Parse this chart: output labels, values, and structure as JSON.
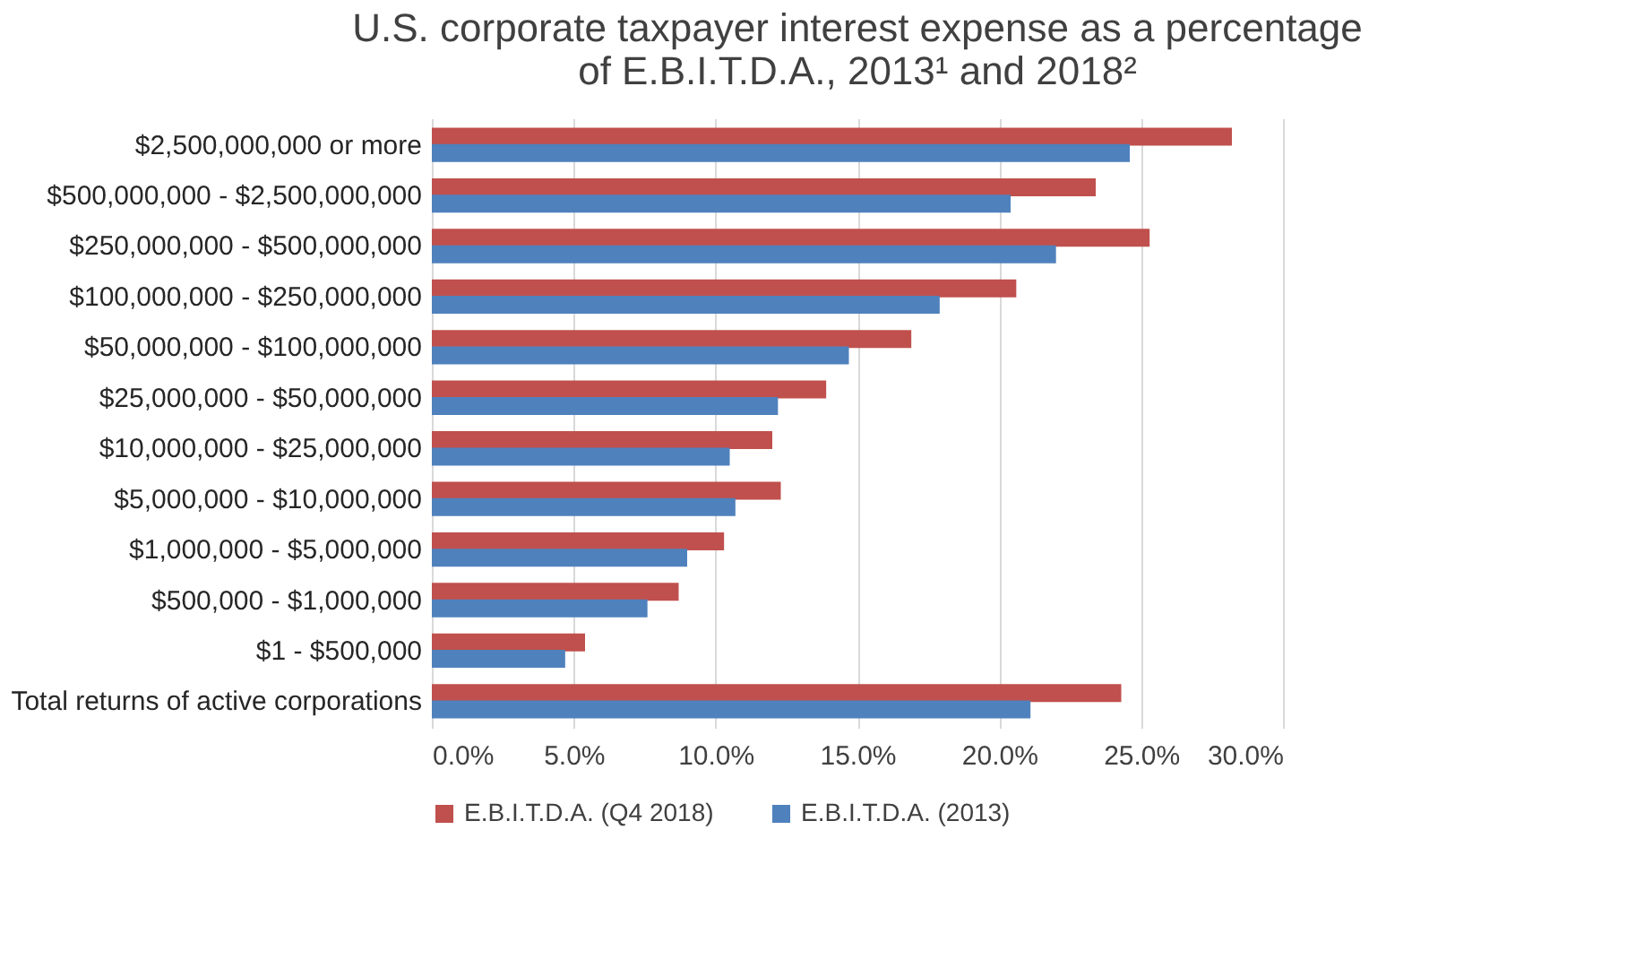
{
  "chart_data": {
    "type": "bar",
    "orientation": "horizontal",
    "title": "U.S. corporate taxpayer interest expense as a percentage of E.B.I.T.D.A., 2013¹ and 2018²",
    "categories": [
      "$2,500,000,000 or more",
      "$500,000,000 - $2,500,000,000",
      "$250,000,000 - $500,000,000",
      "$100,000,000 - $250,000,000",
      "$50,000,000 - $100,000,000",
      "$25,000,000 - $50,000,000",
      "$10,000,000 - $25,000,000",
      "$5,000,000 - $10,000,000",
      "$1,000,000 - $5,000,000",
      "$500,000 - $1,000,000",
      "$1 - $500,000",
      "Total returns of active corporations"
    ],
    "series": [
      {
        "name": "E.B.I.T.D.A. (Q4 2018)",
        "color": "#c0504d",
        "values": [
          28.2,
          23.4,
          25.3,
          20.6,
          16.9,
          13.9,
          12.0,
          12.3,
          10.3,
          8.7,
          5.4,
          24.3
        ]
      },
      {
        "name": "E.B.I.T.D.A. (2013)",
        "color": "#4f81bd",
        "values": [
          24.6,
          20.4,
          22.0,
          17.9,
          14.7,
          12.2,
          10.5,
          10.7,
          9.0,
          7.6,
          4.7,
          21.1
        ]
      }
    ],
    "xlim": [
      0,
      30
    ],
    "xticks": [
      {
        "value": 0,
        "label": "0.0%"
      },
      {
        "value": 5,
        "label": "5.0%"
      },
      {
        "value": 10,
        "label": "10.0%"
      },
      {
        "value": 15,
        "label": "15.0%"
      },
      {
        "value": 20,
        "label": "20.0%"
      },
      {
        "value": 25,
        "label": "25.0%"
      },
      {
        "value": 30,
        "label": "30.0%"
      }
    ],
    "grid": "x",
    "legend": "bottom"
  }
}
